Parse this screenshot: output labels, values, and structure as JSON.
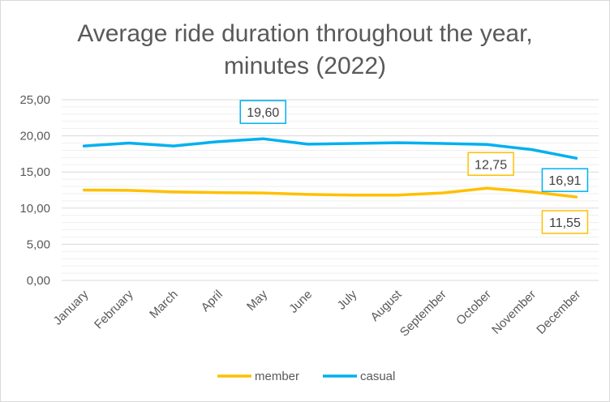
{
  "chart_data": {
    "type": "line",
    "title_lines": [
      "Average ride duration throughout the year,",
      "minutes (2022)"
    ],
    "categories": [
      "January",
      "February",
      "March",
      "April",
      "May",
      "June",
      "July",
      "August",
      "September",
      "October",
      "November",
      "December"
    ],
    "series": [
      {
        "name": "member",
        "color": "#FFC000",
        "values": [
          12.5,
          12.45,
          12.25,
          12.15,
          12.1,
          11.9,
          11.8,
          11.8,
          12.1,
          12.75,
          12.25,
          11.55
        ]
      },
      {
        "name": "casual",
        "color": "#00B0F0",
        "values": [
          18.6,
          19.0,
          18.6,
          19.2,
          19.6,
          18.85,
          18.95,
          19.05,
          18.95,
          18.8,
          18.1,
          16.91
        ]
      }
    ],
    "y_ticks": [
      "25,00",
      "20,00",
      "15,00",
      "10,00",
      "5,00",
      "0,00"
    ],
    "ylim": [
      0,
      25
    ],
    "grid": true,
    "legend_position": "bottom",
    "annotations": [
      {
        "series": 1,
        "index": 4,
        "text": "19,60"
      },
      {
        "series": 0,
        "index": 9,
        "text": "12,75"
      },
      {
        "series": 1,
        "index": 11,
        "text": "16,91"
      },
      {
        "series": 0,
        "index": 11,
        "text": "11,55"
      }
    ],
    "xlabel": "",
    "ylabel": ""
  }
}
